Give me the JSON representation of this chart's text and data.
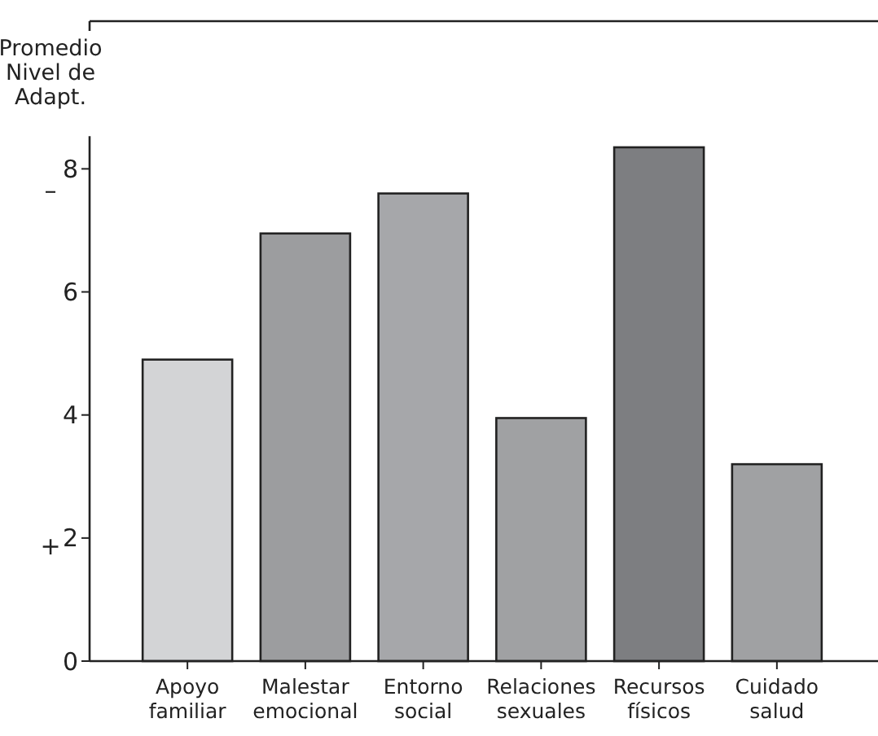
{
  "chart_data": {
    "type": "bar",
    "ylabel": "Promedio Nivel de Adapt.",
    "categories": [
      "Apoyo familiar",
      "Malestar emocional",
      "Entorno social",
      "Relaciones sexuales",
      "Recursos físicos",
      "Cuidado salud"
    ],
    "values": [
      4.9,
      6.95,
      7.6,
      3.95,
      8.35,
      3.2
    ],
    "colors": [
      "#d3d4d6",
      "#9c9d9f",
      "#a6a7aa",
      "#a0a1a3",
      "#7d7e81",
      "#a0a1a3"
    ],
    "ylim": [
      0,
      10.4
    ],
    "yticks": [
      0,
      2,
      4,
      6,
      8
    ],
    "grid": false,
    "annotations": [
      "–",
      "+"
    ]
  }
}
